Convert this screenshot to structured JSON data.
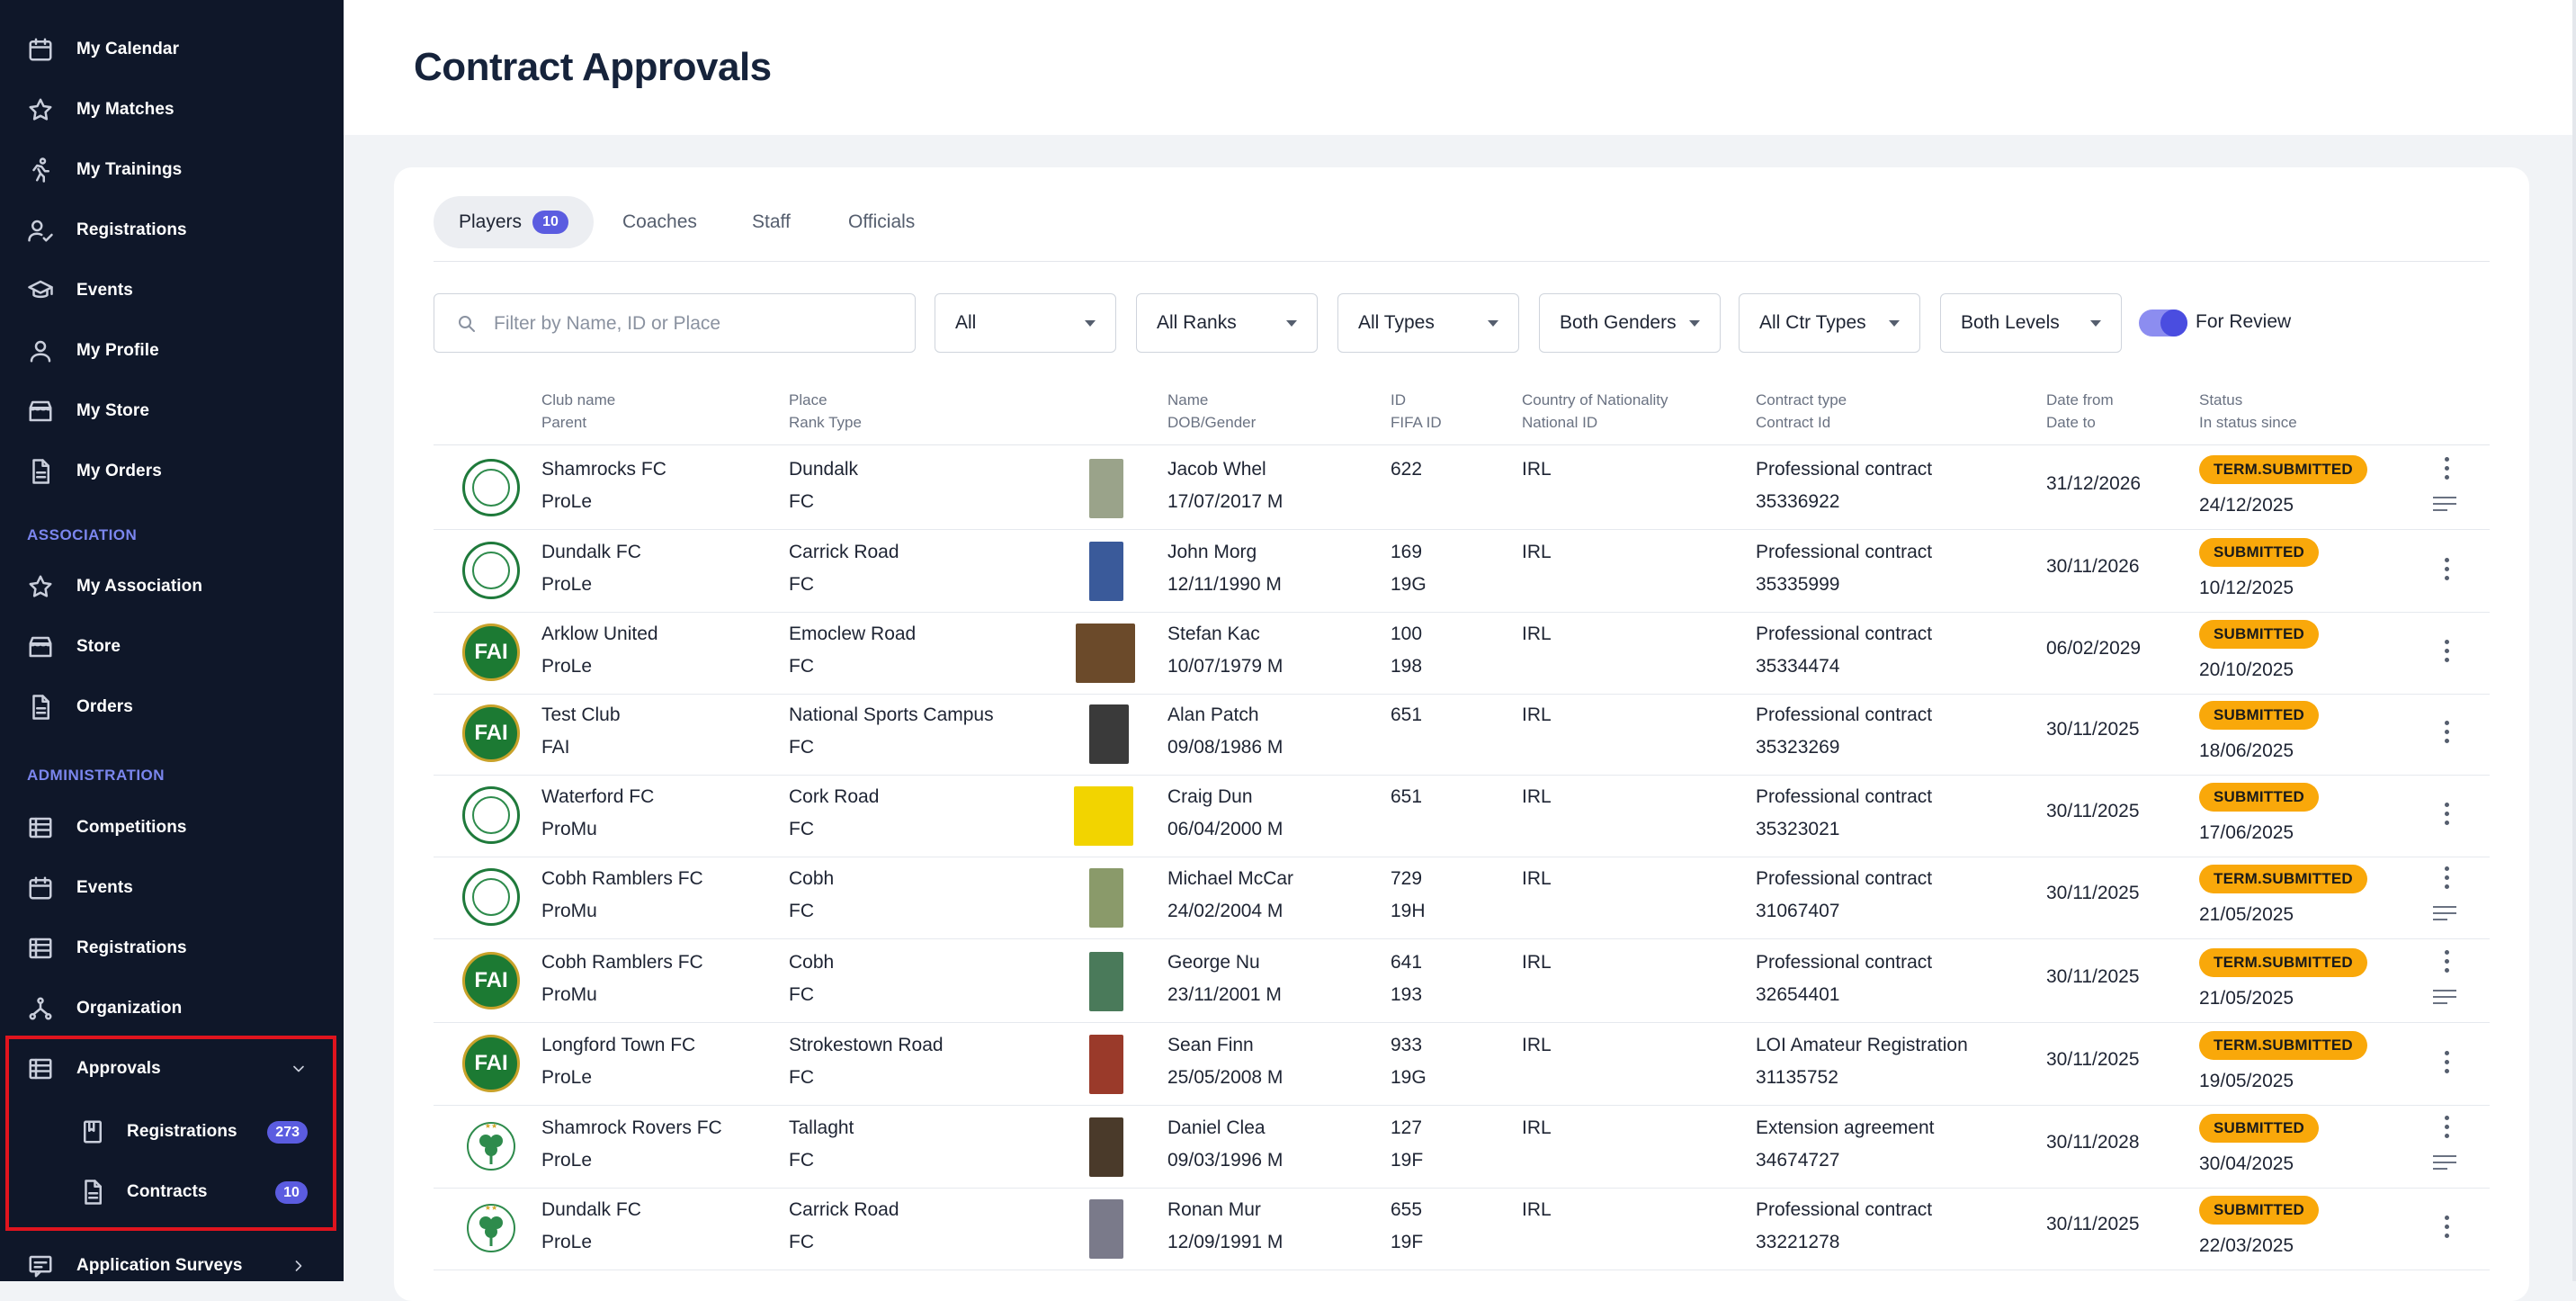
{
  "sidebar": {
    "items_top": [
      {
        "label": "My Calendar",
        "icon": "calendar-icon"
      },
      {
        "label": "My Matches",
        "icon": "star-icon"
      },
      {
        "label": "My Trainings",
        "icon": "running-icon"
      },
      {
        "label": "Registrations",
        "icon": "user-check-icon"
      },
      {
        "label": "Events",
        "icon": "graduation-cap-icon"
      },
      {
        "label": "My Profile",
        "icon": "user-icon"
      },
      {
        "label": "My Store",
        "icon": "store-icon"
      },
      {
        "label": "My Orders",
        "icon": "document-icon"
      }
    ],
    "section_association": "ASSOCIATION",
    "items_association": [
      {
        "label": "My Association",
        "icon": "star-icon"
      },
      {
        "label": "Store",
        "icon": "store-icon"
      },
      {
        "label": "Orders",
        "icon": "document-icon"
      }
    ],
    "section_administration": "ADMINISTRATION",
    "items_administration": [
      {
        "label": "Competitions",
        "icon": "table-icon"
      },
      {
        "label": "Events",
        "icon": "calendar-icon"
      },
      {
        "label": "Registrations",
        "icon": "table-icon"
      },
      {
        "label": "Organization",
        "icon": "hierarchy-icon"
      }
    ],
    "approvals": {
      "label": "Approvals",
      "icon": "table-icon",
      "expanded": true,
      "children": [
        {
          "label": "Registrations",
          "badge": "273",
          "icon": "book-icon"
        },
        {
          "label": "Contracts",
          "badge": "10",
          "icon": "document-icon"
        }
      ]
    },
    "application_surveys": "Application Surveys"
  },
  "header": {
    "title": "Contract Approvals"
  },
  "tabs": [
    {
      "label": "Players",
      "badge": "10",
      "active": true
    },
    {
      "label": "Coaches"
    },
    {
      "label": "Staff"
    },
    {
      "label": "Officials"
    }
  ],
  "filters": {
    "search_placeholder": "Filter by Name, ID or Place",
    "search_value": "",
    "selects": [
      "All",
      "All Ranks",
      "All Types",
      "Both Genders",
      "All Ctr Types",
      "Both Levels"
    ],
    "for_review_label": "For Review",
    "for_review_on": true
  },
  "columns": [
    {
      "l1": "Club name",
      "l2": "Parent"
    },
    {
      "l1": "Place",
      "l2": "Rank Type"
    },
    {
      "l1": "Name",
      "l2": "DOB/Gender"
    },
    {
      "l1": "ID",
      "l2": "FIFA ID"
    },
    {
      "l1": "Country of Nationality",
      "l2": "National ID"
    },
    {
      "l1": "Contract type",
      "l2": "Contract Id"
    },
    {
      "l1": "Date from",
      "l2": "Date to"
    },
    {
      "l1": "Status",
      "l2": "In status since"
    }
  ],
  "colors": {
    "sidebar_bg": "#0f1729",
    "accent": "#5b5ce0",
    "status_orange": "#f9a80a",
    "highlight_red": "#e0141e"
  },
  "rows": [
    {
      "club": "Shamrocks FC",
      "parent": "ProLe",
      "place": "Dundalk",
      "rank": "FC",
      "name": "Jacob Whel",
      "dob": "17/07/2017 M",
      "id": "622",
      "fifa": "",
      "country": "IRL",
      "national_id": "",
      "contract_type": "Professional contract",
      "contract_id": "35336922",
      "date_from": "31/12/2026",
      "date_to": "",
      "status": "TERM.SUBMITTED",
      "since": "24/12/2025",
      "logo": "green-ring",
      "photo": "#9aa38a",
      "notes": true
    },
    {
      "club": "Dundalk FC",
      "parent": "ProLe",
      "place": "Carrick Road",
      "rank": "FC",
      "name": "John Morg",
      "dob": "12/11/1990 M",
      "id": "169",
      "fifa": "19G",
      "country": "IRL",
      "national_id": "",
      "contract_type": "Professional contract",
      "contract_id": "35335999",
      "date_from": "30/11/2026",
      "date_to": "",
      "status": "SUBMITTED",
      "since": "10/12/2025",
      "logo": "green-ring",
      "photo": "#3a5a9a",
      "notes": false
    },
    {
      "club": "Arklow United",
      "parent": "ProLe",
      "place": "Emoclew Road",
      "rank": "FC",
      "name": "Stefan Kac",
      "dob": "10/07/1979 M",
      "id": "100",
      "fifa": "198",
      "country": "IRL",
      "national_id": "",
      "contract_type": "Professional contract",
      "contract_id": "35334474",
      "date_from": "06/02/2029",
      "date_to": "",
      "status": "SUBMITTED",
      "since": "20/10/2025",
      "logo": "fai",
      "photo": "#6b4a2a",
      "notes": false
    },
    {
      "club": "Test Club",
      "parent": "FAI",
      "place": "National Sports Campus",
      "rank": "FC",
      "name": "Alan Patch",
      "dob": "09/08/1986 M",
      "id": "651",
      "fifa": "",
      "country": "IRL",
      "national_id": "",
      "contract_type": "Professional contract",
      "contract_id": "35323269",
      "date_from": "30/11/2025",
      "date_to": "",
      "status": "SUBMITTED",
      "since": "18/06/2025",
      "logo": "fai",
      "photo": "#3a3a3a",
      "notes": false
    },
    {
      "club": "Waterford FC",
      "parent": "ProMu",
      "place": "Cork Road",
      "rank": "FC",
      "name": "Craig Dun",
      "dob": "06/04/2000 M",
      "id": "651",
      "fifa": "",
      "country": "IRL",
      "national_id": "",
      "contract_type": "Professional contract",
      "contract_id": "35323021",
      "date_from": "30/11/2025",
      "date_to": "",
      "status": "SUBMITTED",
      "since": "17/06/2025",
      "logo": "green-ring",
      "photo": "#f2d400",
      "notes": false
    },
    {
      "club": "Cobh Ramblers FC",
      "parent": "ProMu",
      "place": "Cobh",
      "rank": "FC",
      "name": "Michael McCar",
      "dob": "24/02/2004 M",
      "id": "729",
      "fifa": "19H",
      "country": "IRL",
      "national_id": "",
      "contract_type": "Professional contract",
      "contract_id": "31067407",
      "date_from": "30/11/2025",
      "date_to": "",
      "status": "TERM.SUBMITTED",
      "since": "21/05/2025",
      "logo": "green-ring",
      "photo": "#8a9a6a",
      "notes": true
    },
    {
      "club": "Cobh Ramblers FC",
      "parent": "ProMu",
      "place": "Cobh",
      "rank": "FC",
      "name": "George Nu",
      "dob": "23/11/2001 M",
      "id": "641",
      "fifa": "193",
      "country": "IRL",
      "national_id": "",
      "contract_type": "Professional contract",
      "contract_id": "32654401",
      "date_from": "30/11/2025",
      "date_to": "",
      "status": "TERM.SUBMITTED",
      "since": "21/05/2025",
      "logo": "fai",
      "photo": "#4a7a5a",
      "notes": true
    },
    {
      "club": "Longford Town FC",
      "parent": "ProLe",
      "place": "Strokestown Road",
      "rank": "FC",
      "name": "Sean Finn",
      "dob": "25/05/2008 M",
      "id": "933",
      "fifa": "19G",
      "country": "IRL",
      "national_id": "",
      "contract_type": "LOI Amateur Registration",
      "contract_id": "31135752",
      "date_from": "30/11/2025",
      "date_to": "",
      "status": "TERM.SUBMITTED",
      "since": "19/05/2025",
      "logo": "fai",
      "photo": "#9a3a2a",
      "notes": false
    },
    {
      "club": "Shamrock Rovers FC",
      "parent": "ProLe",
      "place": "Tallaght",
      "rank": "FC",
      "name": "Daniel Clea",
      "dob": "09/03/1996 M",
      "id": "127",
      "fifa": "19F",
      "country": "IRL",
      "national_id": "",
      "contract_type": "Extension agreement",
      "contract_id": "34674727",
      "date_from": "30/11/2028",
      "date_to": "",
      "status": "SUBMITTED",
      "since": "30/04/2025",
      "logo": "rovers",
      "photo": "#4a3a2a",
      "notes": true
    },
    {
      "club": "Dundalk FC",
      "parent": "ProLe",
      "place": "Carrick Road",
      "rank": "FC",
      "name": "Ronan Mur",
      "dob": "12/09/1991 M",
      "id": "655",
      "fifa": "19F",
      "country": "IRL",
      "national_id": "",
      "contract_type": "Professional contract",
      "contract_id": "33221278",
      "date_from": "30/11/2025",
      "date_to": "",
      "status": "SUBMITTED",
      "since": "22/03/2025",
      "logo": "rovers",
      "photo": "#7a7a8a",
      "notes": false
    }
  ]
}
